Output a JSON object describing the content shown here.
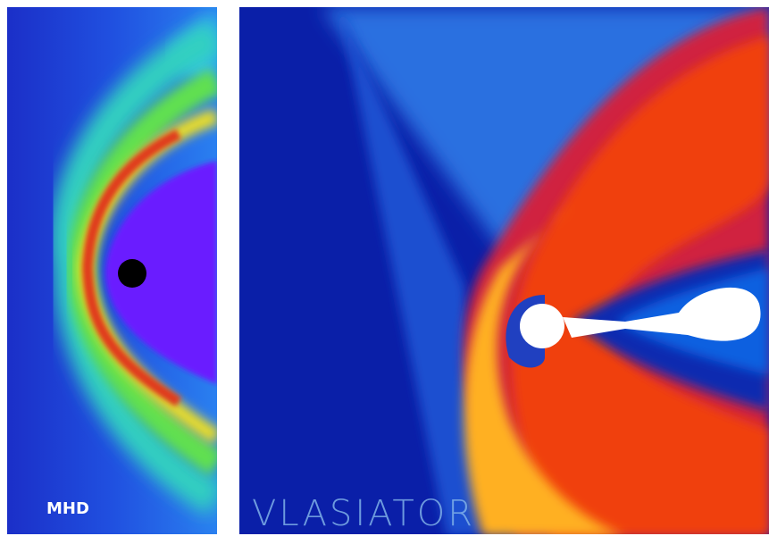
{
  "panels": [
    {
      "label": "MHD"
    },
    {
      "label": "VLASIATOR"
    }
  ]
}
